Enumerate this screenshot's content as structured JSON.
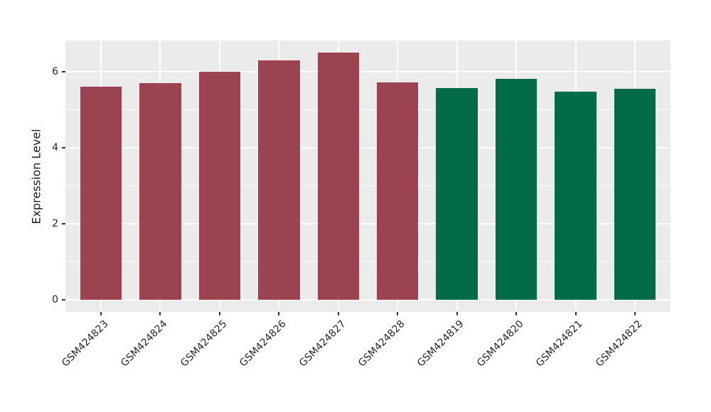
{
  "chart_data": {
    "type": "bar",
    "title": "",
    "xlabel": "",
    "ylabel": "Expression Level",
    "categories": [
      "GSM424823",
      "GSM424824",
      "GSM424825",
      "GSM424826",
      "GSM424827",
      "GSM424828",
      "GSM424819",
      "GSM424820",
      "GSM424821",
      "GSM424822"
    ],
    "values": [
      5.6,
      5.7,
      6.0,
      6.3,
      6.5,
      5.72,
      5.58,
      5.82,
      5.47,
      5.55
    ],
    "bar_colors": [
      "#9c4352",
      "#9c4352",
      "#9c4352",
      "#9c4352",
      "#9c4352",
      "#9c4352",
      "#046b49",
      "#046b49",
      "#046b49",
      "#046b49"
    ],
    "yticks": [
      0,
      2,
      4,
      6
    ],
    "minor_yticks": [
      1,
      3,
      5
    ],
    "ylim": [
      -0.325,
      6.825
    ],
    "grid": "white major horizontal + vertical at category centers, minor horizontal; gray panel",
    "legend_position": "none",
    "bar_width_fraction": 0.7,
    "x_tick_rotation_deg": 45
  },
  "style": {
    "figure_background": "#ffffff",
    "panel_background": "#ebebeb",
    "grid_color": "#ffffff",
    "tick_mark_color": "#333333",
    "text_color": "#262626",
    "red_bar_color": "#9c4352",
    "green_bar_color": "#046b49"
  }
}
